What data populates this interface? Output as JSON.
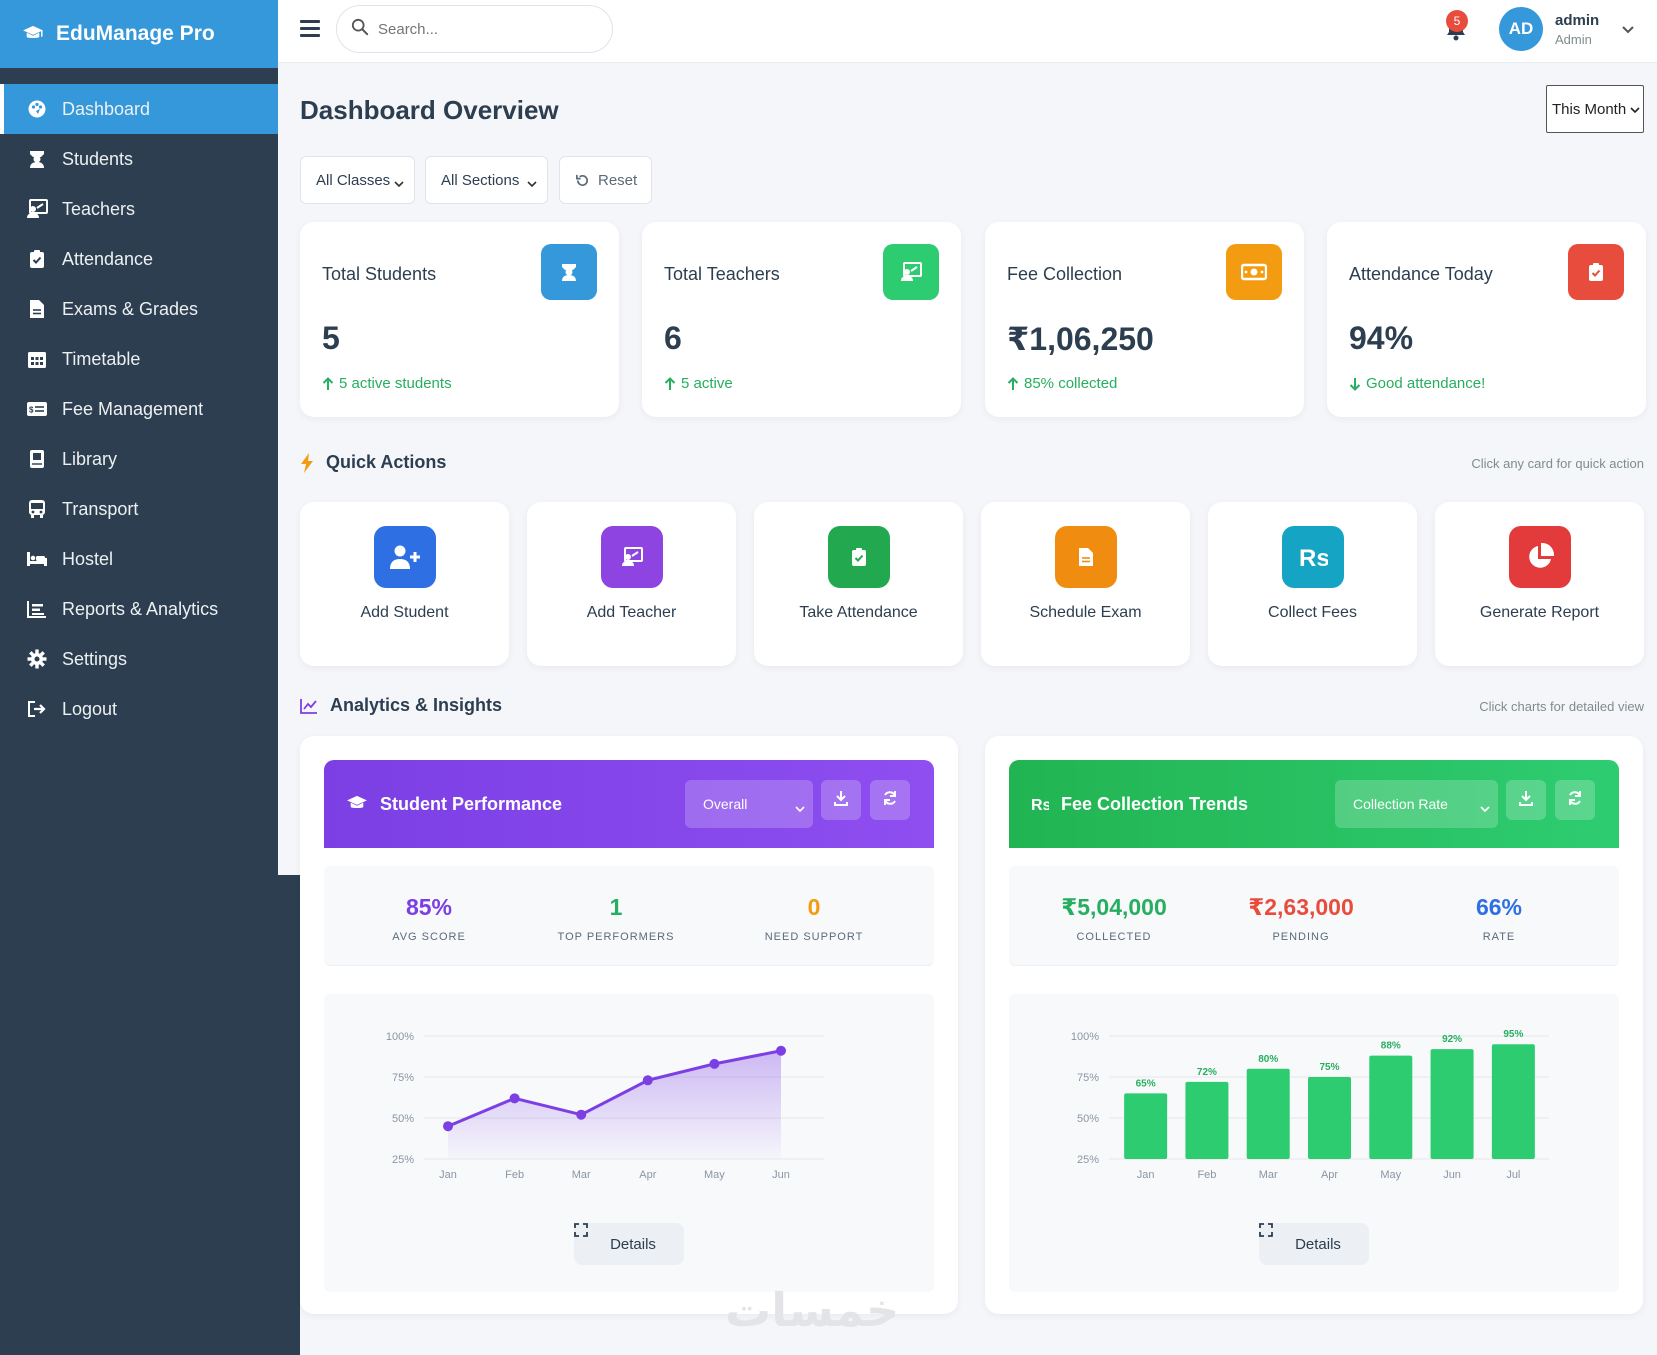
{
  "app": {
    "brand": "EduManage Pro"
  },
  "sidebar": {
    "items": [
      {
        "label": "Dashboard",
        "icon": "palette-icon",
        "active": true
      },
      {
        "label": "Students",
        "icon": "student-icon"
      },
      {
        "label": "Teachers",
        "icon": "teacher-icon"
      },
      {
        "label": "Attendance",
        "icon": "clipboard-check-icon"
      },
      {
        "label": "Exams & Grades",
        "icon": "file-icon"
      },
      {
        "label": "Timetable",
        "icon": "calendar-icon"
      },
      {
        "label": "Fee Management",
        "icon": "money-card-icon"
      },
      {
        "label": "Library",
        "icon": "book-icon"
      },
      {
        "label": "Transport",
        "icon": "bus-icon"
      },
      {
        "label": "Hostel",
        "icon": "bed-icon"
      },
      {
        "label": "Reports & Analytics",
        "icon": "chart-icon"
      },
      {
        "label": "Settings",
        "icon": "gear-icon"
      },
      {
        "label": "Logout",
        "icon": "logout-icon"
      }
    ]
  },
  "topbar": {
    "search_placeholder": "Search...",
    "notification_count": "5",
    "avatar_initials": "AD",
    "user_name": "admin",
    "user_role": "Admin"
  },
  "page": {
    "title": "Dashboard Overview",
    "period": "This Month",
    "filters": {
      "class": "All Classes",
      "section": "All Sections",
      "reset": "Reset"
    }
  },
  "stats": [
    {
      "label": "Total Students",
      "value": "5",
      "sub": "5 active students",
      "trend": "up",
      "color": "#3498db",
      "icon": "student-icon"
    },
    {
      "label": "Total Teachers",
      "value": "6",
      "sub": "5 active",
      "trend": "up",
      "color": "#2ecc71",
      "icon": "teacher-icon"
    },
    {
      "label": "Fee Collection",
      "value": "₹1,06,250",
      "sub": "85% collected",
      "trend": "up",
      "color": "#f39c12",
      "icon": "money-icon"
    },
    {
      "label": "Attendance Today",
      "value": "94%",
      "sub": "Good attendance!",
      "trend": "down",
      "color": "#e74c3c",
      "icon": "clipboard-check-icon"
    }
  ],
  "quick_actions": {
    "title": "Quick Actions",
    "note": "Click any card for quick action",
    "items": [
      {
        "label": "Add Student",
        "color": "#2f6fe4",
        "icon": "user-plus-icon"
      },
      {
        "label": "Add Teacher",
        "color": "#8e44e0",
        "icon": "teacher-icon"
      },
      {
        "label": "Take Attendance",
        "color": "#22a94f",
        "icon": "clipboard-check-icon"
      },
      {
        "label": "Schedule Exam",
        "color": "#f08c0f",
        "icon": "file-icon"
      },
      {
        "label": "Collect Fees",
        "color": "#16a4c4",
        "icon": "rupee-icon"
      },
      {
        "label": "Generate Report",
        "color": "#e33b3b",
        "icon": "pie-chart-icon"
      }
    ]
  },
  "analytics": {
    "title": "Analytics & Insights",
    "note": "Click charts for detailed view",
    "performance": {
      "title": "Student Performance",
      "select": "Overall",
      "metrics": [
        {
          "value": "85%",
          "label": "AVG SCORE",
          "color": "#7b3fe4"
        },
        {
          "value": "1",
          "label": "TOP PERFORMERS",
          "color": "#27ae60"
        },
        {
          "value": "0",
          "label": "NEED SUPPORT",
          "color": "#f39c12"
        }
      ],
      "details": "Details"
    },
    "fees": {
      "title": "Fee Collection Trends",
      "select": "Collection Rate",
      "metrics": [
        {
          "value": "₹5,04,000",
          "label": "COLLECTED",
          "color": "#27ae60"
        },
        {
          "value": "₹2,63,000",
          "label": "PENDING",
          "color": "#e74c3c"
        },
        {
          "value": "66%",
          "label": "RATE",
          "color": "#2f6fe4"
        }
      ],
      "details": "Details"
    }
  },
  "chart_data": [
    {
      "type": "area",
      "categories": [
        "Jan",
        "Feb",
        "Mar",
        "Apr",
        "May",
        "Jun"
      ],
      "values": [
        45,
        62,
        52,
        73,
        83,
        91
      ],
      "ylim": [
        25,
        100
      ],
      "yticks": [
        "100%",
        "75%",
        "50%",
        "25%"
      ],
      "grid": true,
      "color": "#7b3fe4"
    },
    {
      "type": "bar",
      "categories": [
        "Jan",
        "Feb",
        "Mar",
        "Apr",
        "May",
        "Jun",
        "Jul"
      ],
      "values": [
        65,
        72,
        80,
        75,
        88,
        92,
        95
      ],
      "labels": [
        "65%",
        "72%",
        "80%",
        "75%",
        "88%",
        "92%",
        "95%"
      ],
      "ylim": [
        25,
        100
      ],
      "yticks": [
        "100%",
        "75%",
        "50%",
        "25%"
      ],
      "grid": true,
      "color": "#2ecc71"
    }
  ],
  "watermark": "خمسات"
}
